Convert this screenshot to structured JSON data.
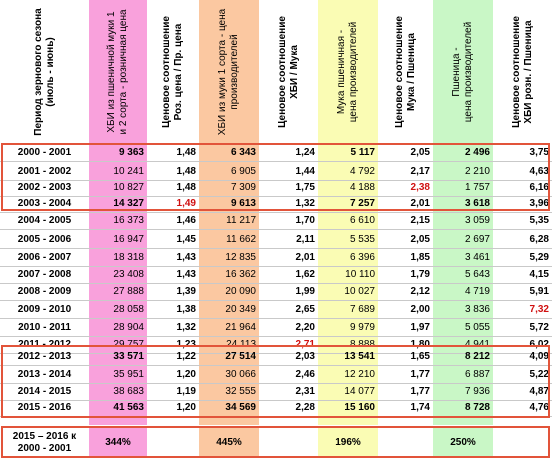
{
  "colors": {
    "pink_column": "#f9a1dc",
    "orange_column": "#fbc8a1",
    "yellow_column": "#fafcb4",
    "green_column": "#c9f7c6",
    "frame": "#e2543a",
    "highlight_text": "#d01010"
  },
  "headers": [
    "Период зернового сезона\n(июль - июнь)",
    "ХБИ из пшеничной муки 1\nи 2 сорта - розничная цена",
    "Ценовое соотношение\nРоз. цена / Пр. цена",
    "ХБИ из муки 1 сорта - цена\nпроизводителей",
    "Ценовое соотношение\nХБИ / Мука",
    "Мука пшеничная -\nцена производителей",
    "Ценовое соотношение\nМука / Пшеница",
    "Пшеница -\nцена производителей",
    "Ценовое соотношение\nХБИ розн. / Пшеница"
  ],
  "rows": [
    {
      "period": "2000 - 2001",
      "v": [
        "9 363",
        "1,48",
        "6 343",
        "1,24",
        "5 117",
        "2,05",
        "2 496",
        "3,75"
      ],
      "bold": true,
      "red": []
    },
    {
      "period": "2001 - 2002",
      "v": [
        "10 241",
        "1,48",
        "6 905",
        "1,44",
        "4 792",
        "2,17",
        "2 210",
        "4,63"
      ],
      "bold": false,
      "red": []
    },
    {
      "period": "2002 - 2003",
      "v": [
        "10 827",
        "1,48",
        "7 309",
        "1,75",
        "4 188",
        "2,38",
        "1 757",
        "6,16"
      ],
      "bold": false,
      "red": [
        5
      ]
    },
    {
      "period": "2003 - 2004",
      "v": [
        "14 327",
        "1,49",
        "9 613",
        "1,32",
        "7 257",
        "2,01",
        "3 618",
        "3,96"
      ],
      "bold": true,
      "red": [
        1
      ]
    },
    {
      "period": "2004 - 2005",
      "v": [
        "16 373",
        "1,46",
        "11 217",
        "1,70",
        "6 610",
        "2,15",
        "3 059",
        "5,35"
      ],
      "bold": false,
      "red": []
    },
    {
      "period": "2005 - 2006",
      "v": [
        "16 947",
        "1,45",
        "11 662",
        "2,11",
        "5 535",
        "2,05",
        "2 697",
        "6,28"
      ],
      "bold": false,
      "red": []
    },
    {
      "period": "2006 - 2007",
      "v": [
        "18 318",
        "1,43",
        "12 835",
        "2,01",
        "6 396",
        "1,85",
        "3 461",
        "5,29"
      ],
      "bold": false,
      "red": []
    },
    {
      "period": "2007 - 2008",
      "v": [
        "23 408",
        "1,43",
        "16 362",
        "1,62",
        "10 110",
        "1,79",
        "5 643",
        "4,15"
      ],
      "bold": false,
      "red": []
    },
    {
      "period": "2008 - 2009",
      "v": [
        "27 888",
        "1,39",
        "20 090",
        "1,99",
        "10 027",
        "2,12",
        "4 719",
        "5,91"
      ],
      "bold": false,
      "red": []
    },
    {
      "period": "2009 - 2010",
      "v": [
        "28 058",
        "1,38",
        "20 349",
        "2,65",
        "7 689",
        "2,00",
        "3 836",
        "7,32"
      ],
      "bold": false,
      "red": [
        7
      ]
    },
    {
      "period": "2010 - 2011",
      "v": [
        "28 904",
        "1,32",
        "21 964",
        "2,20",
        "9 979",
        "1,97",
        "5 055",
        "5,72"
      ],
      "bold": false,
      "red": []
    },
    {
      "period": "2011 - 2012",
      "v": [
        "29 757",
        "1,23",
        "24 113",
        "2,71",
        "8 888",
        "1,80",
        "4 941",
        "6,02"
      ],
      "bold": false,
      "red": [
        3
      ]
    },
    {
      "period": "2012 - 2013",
      "v": [
        "33 571",
        "1,22",
        "27 514",
        "2,03",
        "13 541",
        "1,65",
        "8 212",
        "4,09"
      ],
      "bold": true,
      "red": []
    },
    {
      "period": "2013 - 2014",
      "v": [
        "35 951",
        "1,20",
        "30 066",
        "2,46",
        "12 210",
        "1,77",
        "6 887",
        "5,22"
      ],
      "bold": false,
      "red": []
    },
    {
      "period": "2014 - 2015",
      "v": [
        "38 683",
        "1,19",
        "32 555",
        "2,31",
        "14 077",
        "1,77",
        "7 936",
        "4,87"
      ],
      "bold": false,
      "red": []
    },
    {
      "period": "2015 - 2016",
      "v": [
        "41 563",
        "1,20",
        "34 569",
        "2,28",
        "15 160",
        "1,74",
        "8 728",
        "4,76"
      ],
      "bold": true,
      "red": []
    }
  ],
  "footer": {
    "period": "2015 – 2016 к\n2000 - 2001",
    "values": [
      "344%",
      "",
      "445%",
      "",
      "196%",
      "",
      "250%",
      ""
    ]
  }
}
